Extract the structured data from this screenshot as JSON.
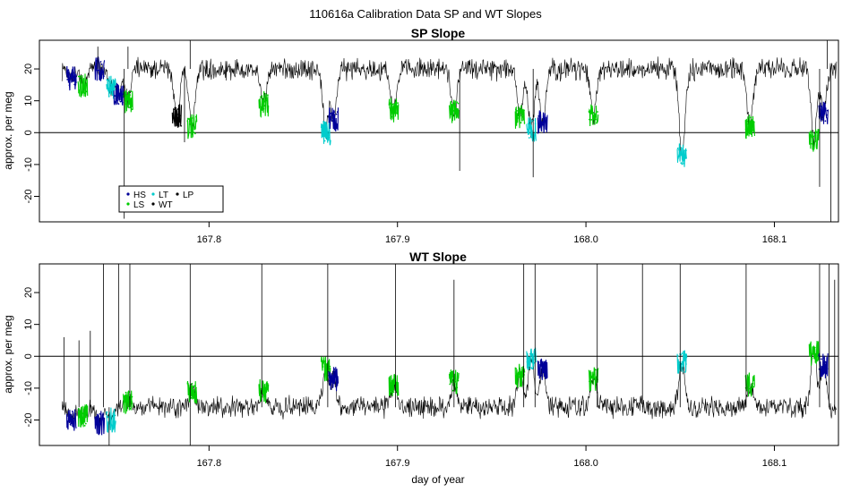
{
  "figure_title": "110616a   Calibration Data SP and WT Slopes",
  "xlabel": "day of year",
  "colors": {
    "HS": "#000099",
    "LS": "#00cc00",
    "LT": "#00cccc",
    "WT": "#000000",
    "LP": "#000000"
  },
  "chart_data": [
    {
      "type": "line",
      "title": "SP Slope",
      "xlabel": "",
      "ylabel": "approx. per meg",
      "xlim": [
        167.71,
        168.134
      ],
      "ylim": [
        -28,
        29
      ],
      "xticks": [
        167.8,
        167.9,
        168.0,
        168.1
      ],
      "xtick_labels": [
        "167.8",
        "167.9",
        "168.0",
        "168.1"
      ],
      "yticks": [
        -20,
        -10,
        0,
        10,
        20
      ],
      "ytick_labels": [
        "-20",
        "-10",
        "0",
        "10",
        "20"
      ],
      "hline": 0,
      "legend": {
        "placement": "bottom-left",
        "entries": [
          {
            "name": "HS",
            "color": "#000099"
          },
          {
            "name": "LT",
            "color": "#00cccc"
          },
          {
            "name": "LP",
            "color": "#000000"
          },
          {
            "name": "LS",
            "color": "#00cc00"
          },
          {
            "name": "WT",
            "color": "#000000"
          }
        ]
      },
      "baseline": 20,
      "noise": 2.5,
      "calibration_dips": [
        [
          167.727,
          17,
          "HS"
        ],
        [
          167.733,
          15,
          "LS"
        ],
        [
          167.742,
          20,
          "HS"
        ],
        [
          167.748,
          14,
          "LT"
        ],
        [
          167.752,
          12,
          "HS"
        ],
        [
          167.757,
          10,
          "LS"
        ],
        [
          167.783,
          5,
          "WT"
        ],
        [
          167.791,
          2,
          "LS"
        ],
        [
          167.829,
          9,
          "LS"
        ],
        [
          167.862,
          0,
          "LT"
        ],
        [
          167.866,
          4,
          "HS"
        ],
        [
          167.898,
          7,
          "LS"
        ],
        [
          167.93,
          7,
          "LS"
        ],
        [
          167.965,
          5,
          "LS"
        ],
        [
          167.971,
          1,
          "LT"
        ],
        [
          167.977,
          3,
          "HS"
        ],
        [
          168.004,
          5,
          "LS"
        ],
        [
          168.051,
          -7,
          "LT"
        ],
        [
          168.087,
          2,
          "LS"
        ],
        [
          168.121,
          -2,
          "LS"
        ],
        [
          168.126,
          6,
          "HS"
        ]
      ],
      "spikes": [
        [
          167.741,
          27
        ],
        [
          167.755,
          -27
        ],
        [
          167.757,
          27
        ],
        [
          167.79,
          29
        ],
        [
          167.787,
          -3
        ],
        [
          167.933,
          -12
        ],
        [
          167.972,
          -14
        ],
        [
          168.124,
          -17
        ],
        [
          168.128,
          29
        ],
        [
          168.13,
          -28
        ],
        [
          168.134,
          29
        ]
      ]
    },
    {
      "type": "line",
      "title": "WT Slope",
      "xlabel": "day of year",
      "ylabel": "approx. per meg",
      "xlim": [
        167.71,
        168.134
      ],
      "ylim": [
        -28,
        29
      ],
      "xticks": [
        167.8,
        167.9,
        168.0,
        168.1
      ],
      "xtick_labels": [
        "167.8",
        "167.9",
        "168.0",
        "168.1"
      ],
      "yticks": [
        -20,
        -10,
        0,
        10,
        20
      ],
      "ytick_labels": [
        "-20",
        "-10",
        "0",
        "10",
        "20"
      ],
      "hline": 0,
      "baseline": -16,
      "noise": 2.5,
      "calibration_dips": [
        [
          167.727,
          -20,
          "HS"
        ],
        [
          167.733,
          -19,
          "LS"
        ],
        [
          167.742,
          -21,
          "HS"
        ],
        [
          167.748,
          -20,
          "LT"
        ],
        [
          167.757,
          -14,
          "LS"
        ],
        [
          167.791,
          -11,
          "LS"
        ],
        [
          167.829,
          -11,
          "LS"
        ],
        [
          167.862,
          -4,
          "LS"
        ],
        [
          167.866,
          -7,
          "HS"
        ],
        [
          167.898,
          -9,
          "LS"
        ],
        [
          167.93,
          -8,
          "LS"
        ],
        [
          167.965,
          -6,
          "LS"
        ],
        [
          167.971,
          -1,
          "LT"
        ],
        [
          167.977,
          -4,
          "HS"
        ],
        [
          168.004,
          -7,
          "LS"
        ],
        [
          168.051,
          -2,
          "LT"
        ],
        [
          168.087,
          -9,
          "LS"
        ],
        [
          168.121,
          1,
          "LS"
        ],
        [
          168.126,
          -3,
          "HS"
        ]
      ],
      "spikes": [
        [
          167.723,
          6
        ],
        [
          167.731,
          5
        ],
        [
          167.737,
          8
        ],
        [
          167.744,
          29
        ],
        [
          167.747,
          -28
        ],
        [
          167.752,
          29
        ],
        [
          167.758,
          29
        ],
        [
          167.79,
          29
        ],
        [
          167.79,
          -28
        ],
        [
          167.828,
          29
        ],
        [
          167.863,
          29
        ],
        [
          167.899,
          29
        ],
        [
          167.93,
          24
        ],
        [
          167.967,
          29
        ],
        [
          167.973,
          29
        ],
        [
          168.006,
          29
        ],
        [
          168.03,
          29
        ],
        [
          168.05,
          29
        ],
        [
          168.085,
          29
        ],
        [
          168.124,
          29
        ],
        [
          168.129,
          29
        ],
        [
          168.132,
          24
        ]
      ]
    }
  ]
}
